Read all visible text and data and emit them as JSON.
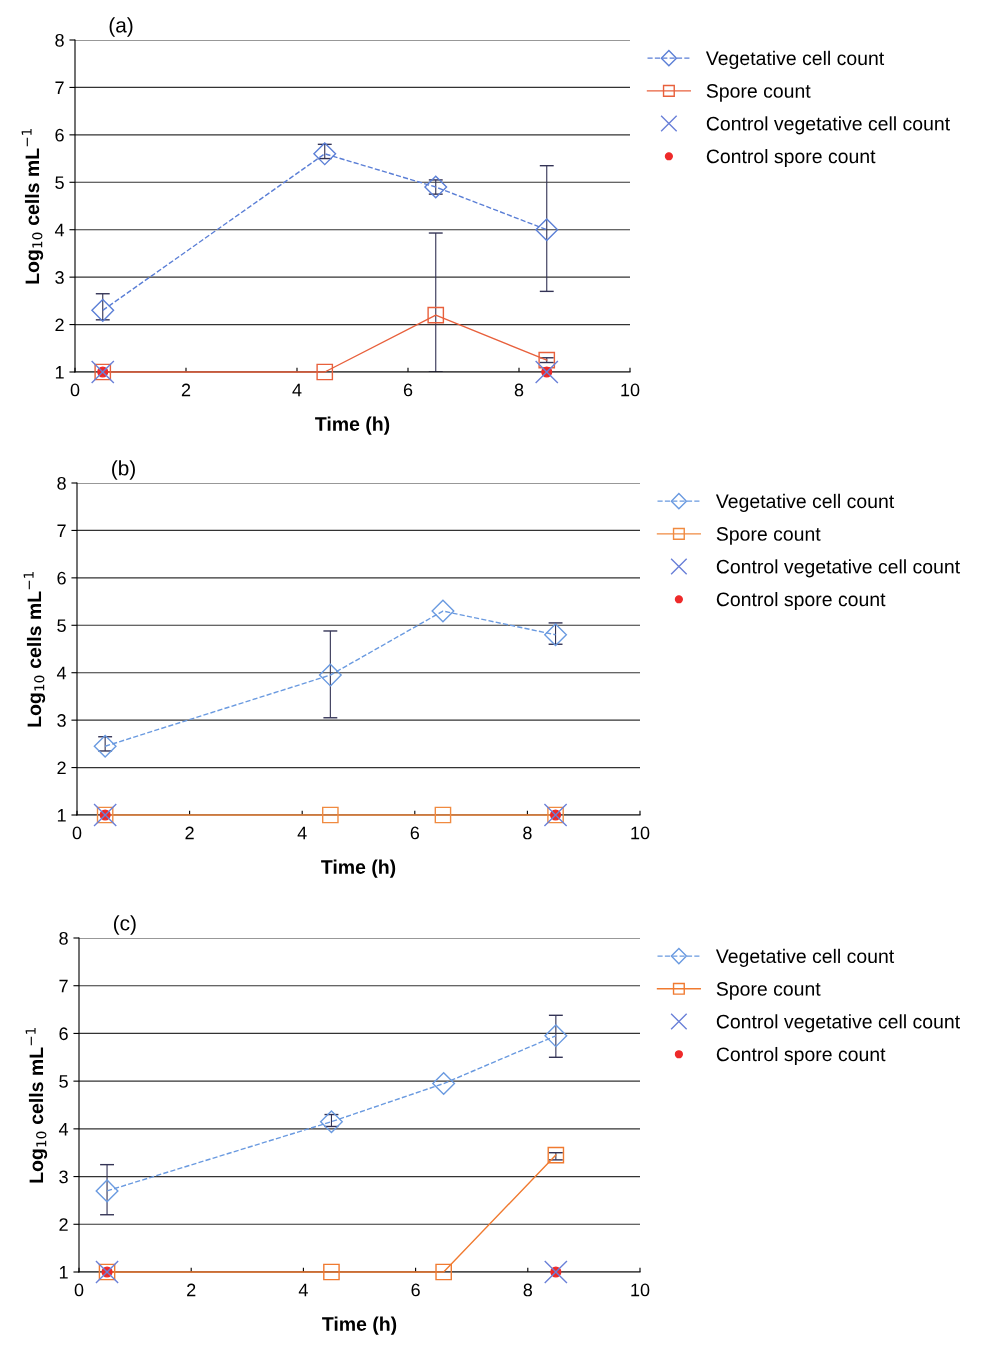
{
  "chart_data": [
    {
      "type": "line",
      "title": "(a)",
      "xlabel": "Time (h)",
      "ylabel": "Log$_{10}$ cells mL$^{−1}$",
      "xlim": [
        0,
        10
      ],
      "xticks": [
        0,
        2,
        4,
        6,
        8,
        10
      ],
      "ylim": [
        1,
        8
      ],
      "yticks": [
        1,
        2,
        3,
        4,
        5,
        6,
        7,
        8
      ],
      "grid": "y",
      "legend": "right",
      "series": [
        {
          "name": "Vegetative cell count",
          "color": "#5b7fd6",
          "marker": "diamond",
          "line_style": "dashed",
          "x": [
            0.5,
            4.5,
            6.5,
            8.5
          ],
          "values": [
            2.3,
            5.6,
            4.9,
            4.0
          ],
          "errors": [
            [
              2.1,
              2.65
            ],
            [
              5.5,
              5.8
            ],
            [
              4.75,
              5.05
            ],
            [
              2.7,
              5.35
            ]
          ]
        },
        {
          "name": "Spore count",
          "color": "#e8603c",
          "marker": "square",
          "line_style": "solid",
          "x": [
            0.5,
            4.5,
            6.5,
            8.5
          ],
          "values": [
            1.0,
            1.0,
            2.2,
            1.25
          ],
          "errors": [
            null,
            null,
            [
              1.0,
              3.93
            ],
            [
              1.2,
              1.3
            ]
          ]
        },
        {
          "name": "Control vegetative cell count",
          "type": "scatter",
          "color": "#6a80d8",
          "marker": "cross",
          "x": [
            0.5,
            8.5
          ],
          "values": [
            1.0,
            1.0
          ]
        },
        {
          "name": "Control spore count",
          "type": "scatter",
          "color": "#ee2a2a",
          "marker": "circle",
          "x": [
            0.5,
            8.5
          ],
          "values": [
            1.0,
            1.0
          ]
        }
      ]
    },
    {
      "type": "line",
      "title": "(b)",
      "xlabel": "Time (h)",
      "ylabel": "Log$_{10}$ cells mL$^{−1}$",
      "xlim": [
        0,
        10
      ],
      "xticks": [
        0,
        2,
        4,
        6,
        8,
        10
      ],
      "ylim": [
        1,
        8
      ],
      "yticks": [
        1,
        2,
        3,
        4,
        5,
        6,
        7,
        8
      ],
      "grid": "y",
      "legend": "right",
      "series": [
        {
          "name": "Vegetative cell count",
          "color": "#6a9ae0",
          "marker": "diamond",
          "line_style": "dashed",
          "x": [
            0.5,
            4.5,
            6.5,
            8.5
          ],
          "values": [
            2.45,
            3.95,
            5.3,
            4.8
          ],
          "errors": [
            [
              2.35,
              2.65
            ],
            [
              3.05,
              4.88
            ],
            null,
            [
              4.6,
              5.05
            ]
          ]
        },
        {
          "name": "Spore count",
          "color": "#f08a40",
          "marker": "square",
          "line_style": "solid",
          "x": [
            0.5,
            4.5,
            6.5,
            8.5
          ],
          "values": [
            1.0,
            1.0,
            1.0,
            1.0
          ]
        },
        {
          "name": "Control vegetative cell count",
          "type": "scatter",
          "color": "#6a80d8",
          "marker": "cross",
          "x": [
            0.5,
            8.5
          ],
          "values": [
            1.0,
            1.0
          ]
        },
        {
          "name": "Control spore count",
          "type": "scatter",
          "color": "#ee2a2a",
          "marker": "circle",
          "x": [
            0.5,
            8.5
          ],
          "values": [
            1.0,
            1.0
          ]
        }
      ]
    },
    {
      "type": "line",
      "title": "(c)",
      "xlabel": "Time (h)",
      "ylabel": "Log$_{10}$ cells mL$^{−1}$",
      "xlim": [
        0,
        10
      ],
      "xticks": [
        0,
        2,
        4,
        6,
        8,
        10
      ],
      "ylim": [
        1,
        8
      ],
      "yticks": [
        1,
        2,
        3,
        4,
        5,
        6,
        7,
        8
      ],
      "grid": "y",
      "legend": "right",
      "series": [
        {
          "name": "Vegetative cell count",
          "color": "#6a9ae0",
          "marker": "diamond",
          "line_style": "dashed",
          "x": [
            0.5,
            4.5,
            6.5,
            8.5
          ],
          "values": [
            2.7,
            4.15,
            4.95,
            5.95
          ],
          "errors": [
            [
              2.2,
              3.25
            ],
            [
              4.05,
              4.3
            ],
            null,
            [
              5.5,
              6.38
            ]
          ]
        },
        {
          "name": "Spore count",
          "color": "#f07a30",
          "marker": "square",
          "line_style": "solid",
          "x": [
            0.5,
            4.5,
            6.5,
            8.5
          ],
          "values": [
            1.0,
            1.0,
            1.0,
            3.45
          ],
          "errors": [
            null,
            null,
            null,
            [
              3.35,
              3.5
            ]
          ]
        },
        {
          "name": "Control vegetative cell count",
          "type": "scatter",
          "color": "#6a80d8",
          "marker": "cross",
          "x": [
            0.5,
            8.5
          ],
          "values": [
            1.0,
            1.0
          ]
        },
        {
          "name": "Control spore count",
          "type": "scatter",
          "color": "#ee2a2a",
          "marker": "circle",
          "x": [
            0.5,
            8.5
          ],
          "values": [
            1.0,
            1.0
          ]
        }
      ]
    }
  ]
}
